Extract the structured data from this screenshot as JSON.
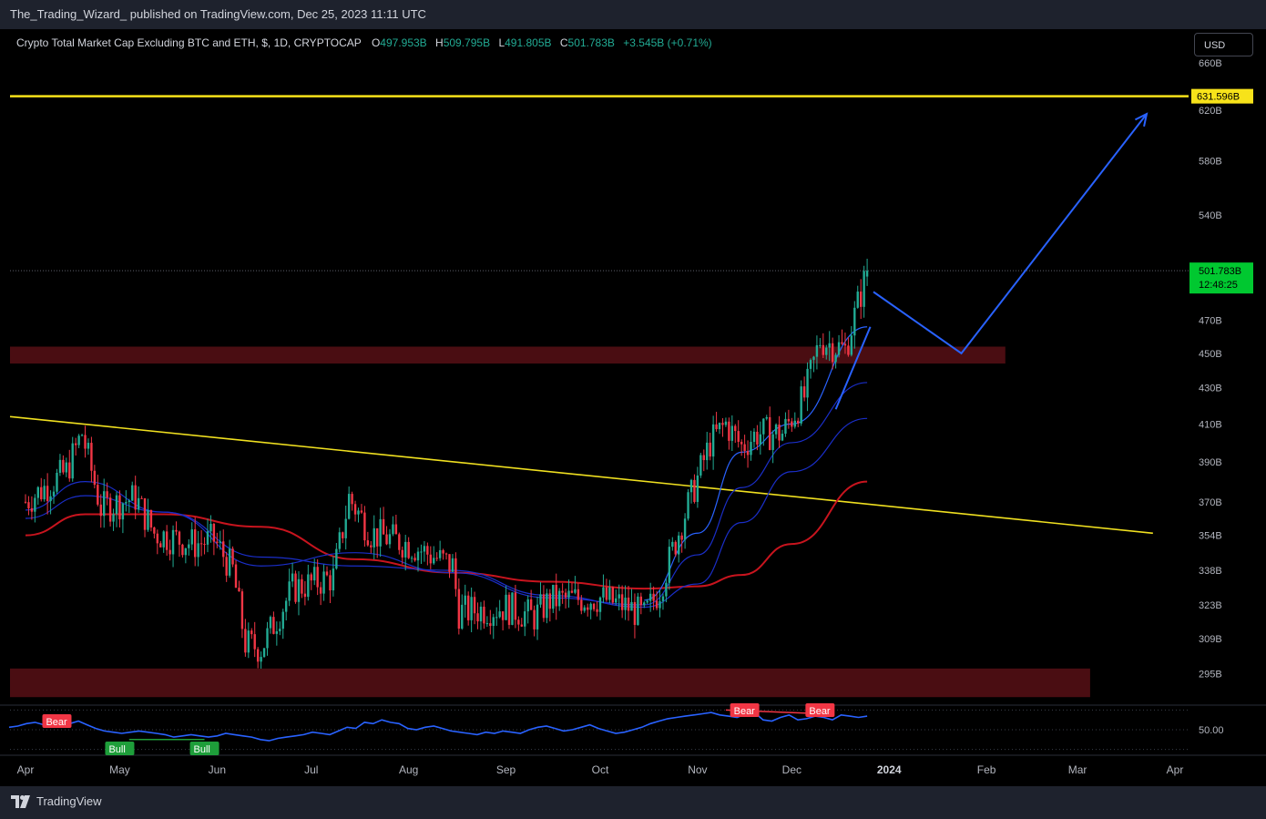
{
  "header": {
    "publisher_line": "The_Trading_Wizard_ published on TradingView.com, Dec 25, 2023 11:11 UTC"
  },
  "legend": {
    "symbol": "Crypto Total Market Cap Excluding BTC and ETH, $, 1D, CRYPTOCAP",
    "open_label": "O",
    "open": "497.953B",
    "high_label": "H",
    "high": "509.795B",
    "low_label": "L",
    "low": "491.805B",
    "close_label": "C",
    "close": "501.783B",
    "change": "+3.545B (+0.71%)"
  },
  "currency_button": "USD",
  "footer": {
    "brand": "TradingView"
  },
  "colors": {
    "background": "#000000",
    "frame": "#1e222d",
    "up": "#22ab94",
    "down": "#f23645",
    "resistance": "#f7e21a",
    "zone": "#4a0d12",
    "projection": "#2962ff",
    "ma_long": "#c8141e",
    "ma_mid": "#1a2ec8",
    "rsi": "#2962ff",
    "price_tag": "#00c830"
  },
  "chart_data": {
    "type": "candlestick",
    "title": "Crypto Total Market Cap Excluding BTC and ETH, $, 1D, CRYPTOCAP",
    "x_axis": {
      "labels": [
        "Apr",
        "May",
        "Jun",
        "Jul",
        "Aug",
        "Sep",
        "Oct",
        "Nov",
        "Dec",
        "2024",
        "Feb",
        "Mar",
        "Apr"
      ],
      "start": "2023-04-01",
      "end": "2024-04-01"
    },
    "y_axis": {
      "scale": "log",
      "unit": "B",
      "min": 283,
      "max": 690,
      "tick_labels": [
        "660B",
        "620B",
        "580B",
        "540B",
        "470B",
        "450B",
        "430B",
        "410B",
        "390B",
        "370B",
        "354B",
        "338B",
        "323B",
        "309B",
        "295B"
      ],
      "ticks": [
        660,
        620,
        580,
        540,
        470,
        450,
        430,
        410,
        390,
        370,
        354,
        338,
        323,
        309,
        295
      ]
    },
    "price_path": [
      {
        "date": "2023-04-01",
        "value": 370
      },
      {
        "date": "2023-04-14",
        "value": 385
      },
      {
        "date": "2023-04-19",
        "value": 405
      },
      {
        "date": "2023-04-25",
        "value": 367
      },
      {
        "date": "2023-05-06",
        "value": 372
      },
      {
        "date": "2023-05-12",
        "value": 355
      },
      {
        "date": "2023-05-25",
        "value": 350
      },
      {
        "date": "2023-05-31",
        "value": 352
      },
      {
        "date": "2023-06-06",
        "value": 338
      },
      {
        "date": "2023-06-10",
        "value": 307
      },
      {
        "date": "2023-06-15",
        "value": 305
      },
      {
        "date": "2023-06-25",
        "value": 330
      },
      {
        "date": "2023-07-08",
        "value": 335
      },
      {
        "date": "2023-07-13",
        "value": 372
      },
      {
        "date": "2023-07-20",
        "value": 355
      },
      {
        "date": "2023-08-01",
        "value": 350
      },
      {
        "date": "2023-08-15",
        "value": 340
      },
      {
        "date": "2023-08-17",
        "value": 320
      },
      {
        "date": "2023-09-01",
        "value": 322
      },
      {
        "date": "2023-09-10",
        "value": 318
      },
      {
        "date": "2023-09-15",
        "value": 325
      },
      {
        "date": "2023-10-01",
        "value": 326
      },
      {
        "date": "2023-10-10",
        "value": 322
      },
      {
        "date": "2023-10-15",
        "value": 318
      },
      {
        "date": "2023-10-20",
        "value": 330
      },
      {
        "date": "2023-10-27",
        "value": 360
      },
      {
        "date": "2023-11-05",
        "value": 400
      },
      {
        "date": "2023-11-10",
        "value": 410
      },
      {
        "date": "2023-11-15",
        "value": 398
      },
      {
        "date": "2023-11-20",
        "value": 405
      },
      {
        "date": "2023-11-28",
        "value": 405
      },
      {
        "date": "2023-12-05",
        "value": 425
      },
      {
        "date": "2023-12-10",
        "value": 458
      },
      {
        "date": "2023-12-18",
        "value": 452
      },
      {
        "date": "2023-12-22",
        "value": 480
      },
      {
        "date": "2023-12-25",
        "value": 501.783
      }
    ],
    "last_candle": {
      "open": 497.953,
      "high": 509.795,
      "low": 491.805,
      "close": 501.783,
      "change": 3.545,
      "change_pct": 0.71
    },
    "moving_averages": [
      {
        "name": "MA long",
        "color": "#c8141e",
        "points": [
          {
            "date": "2023-04-01",
            "value": 354
          },
          {
            "date": "2023-04-20",
            "value": 364
          },
          {
            "date": "2023-05-15",
            "value": 364
          },
          {
            "date": "2023-06-15",
            "value": 358
          },
          {
            "date": "2023-07-15",
            "value": 343
          },
          {
            "date": "2023-08-15",
            "value": 337
          },
          {
            "date": "2023-09-15",
            "value": 333
          },
          {
            "date": "2023-10-15",
            "value": 330
          },
          {
            "date": "2023-11-01",
            "value": 331
          },
          {
            "date": "2023-11-15",
            "value": 336
          },
          {
            "date": "2023-12-01",
            "value": 350
          },
          {
            "date": "2023-12-25",
            "value": 380
          }
        ]
      },
      {
        "name": "MA mid 1",
        "color": "#1a2ec8",
        "points": [
          {
            "date": "2023-04-01",
            "value": 362
          },
          {
            "date": "2023-04-20",
            "value": 373
          },
          {
            "date": "2023-05-15",
            "value": 365
          },
          {
            "date": "2023-06-15",
            "value": 344
          },
          {
            "date": "2023-07-15",
            "value": 340
          },
          {
            "date": "2023-08-15",
            "value": 338
          },
          {
            "date": "2023-09-15",
            "value": 327
          },
          {
            "date": "2023-10-15",
            "value": 322
          },
          {
            "date": "2023-11-01",
            "value": 332
          },
          {
            "date": "2023-11-15",
            "value": 360
          },
          {
            "date": "2023-12-01",
            "value": 385
          },
          {
            "date": "2023-12-25",
            "value": 413
          }
        ]
      },
      {
        "name": "MA mid 2",
        "color": "#1a2ec8",
        "points": [
          {
            "date": "2023-04-01",
            "value": 366
          },
          {
            "date": "2023-04-20",
            "value": 380
          },
          {
            "date": "2023-05-15",
            "value": 365
          },
          {
            "date": "2023-06-15",
            "value": 340
          },
          {
            "date": "2023-07-15",
            "value": 346
          },
          {
            "date": "2023-08-15",
            "value": 337
          },
          {
            "date": "2023-09-15",
            "value": 326
          },
          {
            "date": "2023-10-15",
            "value": 323
          },
          {
            "date": "2023-11-01",
            "value": 345
          },
          {
            "date": "2023-11-15",
            "value": 377
          },
          {
            "date": "2023-12-01",
            "value": 400
          },
          {
            "date": "2023-12-25",
            "value": 433
          }
        ]
      },
      {
        "name": "MA short",
        "color": "#2962ff",
        "points": [
          {
            "date": "2023-10-15",
            "value": 325
          },
          {
            "date": "2023-11-01",
            "value": 355
          },
          {
            "date": "2023-11-15",
            "value": 395
          },
          {
            "date": "2023-12-01",
            "value": 410
          },
          {
            "date": "2023-12-25",
            "value": 466
          }
        ]
      }
    ],
    "annotations": {
      "resistance_level": {
        "value": 631.596,
        "label": "631.596B"
      },
      "support_zones": [
        {
          "from": 444,
          "to": 454,
          "x_start": "2023-04-01",
          "x_end": "2024-02-07"
        },
        {
          "from": 286,
          "to": 297,
          "x_start": "2023-04-01",
          "x_end": "2024-03-05"
        }
      ],
      "descending_trendline": [
        {
          "date": "2023-04-01",
          "value": 414
        },
        {
          "date": "2024-03-25",
          "value": 355
        }
      ],
      "projection_path": [
        {
          "date": "2023-12-27",
          "value": 488
        },
        {
          "date": "2024-01-24",
          "value": 450
        },
        {
          "date": "2024-03-23",
          "value": 617
        }
      ],
      "current_price_tag": {
        "value": 501.783,
        "label": "501.783B",
        "countdown": "12:48:25"
      }
    },
    "rsi_panel": {
      "level_label": "50.00",
      "level": 50,
      "range": [
        30,
        70
      ],
      "values": [
        52,
        53,
        55,
        56,
        54,
        56,
        53,
        55,
        57,
        54,
        51,
        49,
        48,
        47,
        48,
        49,
        48,
        47,
        46,
        44,
        45,
        46,
        45,
        44,
        45,
        47,
        46,
        45,
        44,
        42,
        41,
        43,
        44,
        45,
        46,
        48,
        47,
        46,
        49,
        52,
        51,
        56,
        55,
        58,
        56,
        55,
        51,
        50,
        52,
        53,
        51,
        49,
        48,
        47,
        46,
        48,
        47,
        49,
        48,
        47,
        50,
        52,
        53,
        51,
        49,
        50,
        52,
        54,
        51,
        49,
        47,
        48,
        50,
        52,
        55,
        57,
        59,
        60,
        61,
        62,
        63,
        64,
        62,
        61,
        60,
        63,
        64,
        58,
        57,
        60,
        62,
        58,
        59,
        61,
        60,
        58,
        62,
        61,
        60,
        61
      ],
      "labels": [
        {
          "text": "Bear",
          "kind": "bear",
          "date": "2023-04-11"
        },
        {
          "text": "Bull",
          "kind": "bull",
          "date": "2023-05-01"
        },
        {
          "text": "Bull",
          "kind": "bull",
          "date": "2023-05-28"
        },
        {
          "text": "Bear",
          "kind": "bear",
          "date": "2023-11-16"
        },
        {
          "text": "Bear",
          "kind": "bear",
          "date": "2023-12-10"
        }
      ]
    }
  }
}
